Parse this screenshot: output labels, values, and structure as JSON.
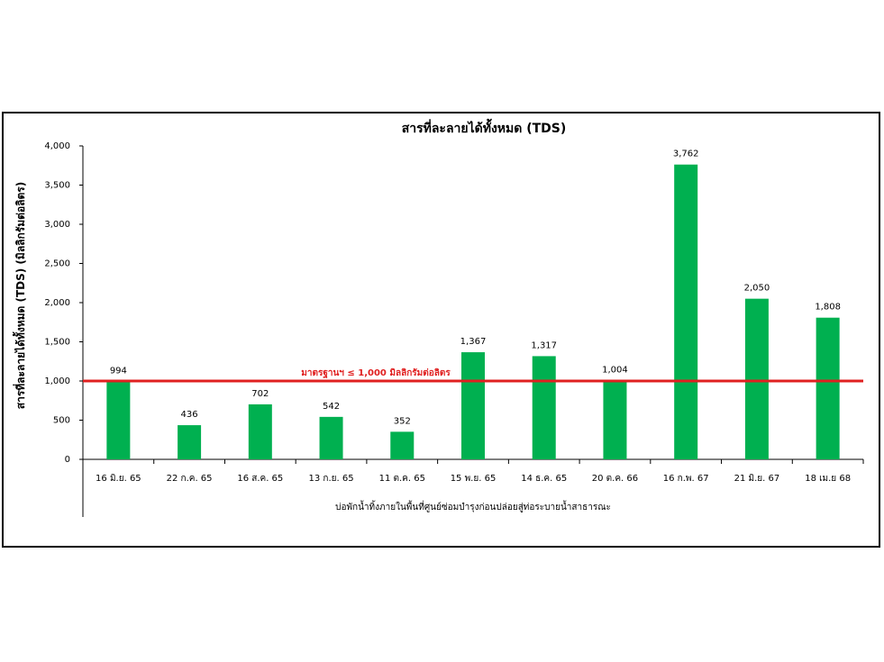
{
  "chart_data": {
    "type": "bar",
    "title": "สารที่ละลายได้ทั้งหมด (TDS)",
    "ylabel": "สารที่ละลายได้ทั้งหมด (TDS) (มิลลิกรัมต่อลิตร)",
    "xlabel": "บ่อพักน้ำทิ้งภายในพื้นที่ศูนย์ซ่อมบำรุงก่อนปล่อยสู่ท่อระบายน้ำสาธารณะ",
    "categories": [
      "16 มิ.ย. 65",
      "22 ก.ค. 65",
      "16 ส.ค. 65",
      "13 ก.ย. 65",
      "11 ต.ค. 65",
      "15 พ.ย. 65",
      "14 ธ.ค. 65",
      "20 ต.ค. 66",
      "16 ก.พ. 67",
      "21 มิ.ย. 67",
      "18 เม.ย 68"
    ],
    "values": [
      994,
      436,
      702,
      542,
      352,
      1367,
      1317,
      1004,
      3762,
      2050,
      1808
    ],
    "value_labels": [
      "994",
      "436",
      "702",
      "542",
      "352",
      "1,367",
      "1,317",
      "1,004",
      "3,762",
      "2,050",
      "1,808"
    ],
    "ylim": [
      0,
      4000
    ],
    "yticks": [
      0,
      500,
      1000,
      1500,
      2000,
      2500,
      3000,
      3500,
      4000
    ],
    "ytick_labels": [
      "0",
      "500",
      "1,000",
      "1,500",
      "2,000",
      "2,500",
      "3,000",
      "3,500",
      "4,000"
    ],
    "bar_color": "#00b050",
    "reference_line": {
      "value": 1000,
      "label": "มาตรฐานฯ ≤ 1,000 มิลลิกรัมต่อลิตร",
      "color": "#e02020"
    },
    "grid": false,
    "legend": "none"
  }
}
